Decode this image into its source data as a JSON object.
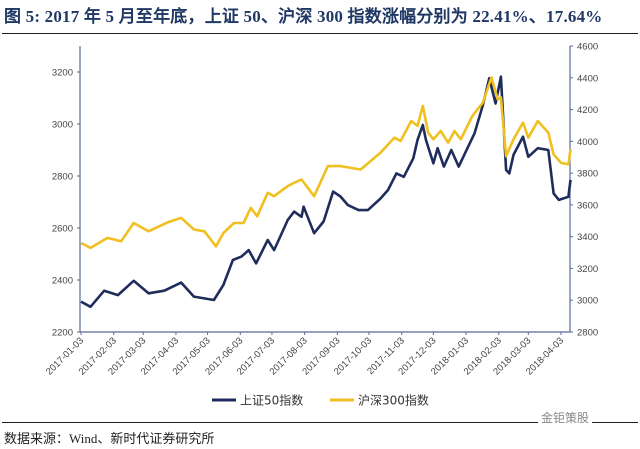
{
  "title": "图 5:   2017 年 5 月至年底，上证 50、沪深 300 指数涨幅分别为 22.41%、17.64%",
  "source": "数据来源：Wind、新时代证券研究所",
  "watermark": "金钜策股",
  "chart_data": {
    "type": "line",
    "title": "",
    "grid": false,
    "legend_position": "bottom",
    "x_ticks": [
      "2017-01-03",
      "2017-02-03",
      "2017-03-03",
      "2017-04-03",
      "2017-05-03",
      "2017-06-03",
      "2017-07-03",
      "2017-08-03",
      "2017-09-03",
      "2017-10-03",
      "2017-11-03",
      "2017-12-03",
      "2018-01-03",
      "2018-02-03",
      "2018-03-03",
      "2018-04-03"
    ],
    "y_left": {
      "lim": [
        2200,
        3300
      ],
      "ticks": [
        2200,
        2400,
        2600,
        2800,
        3000,
        3200
      ]
    },
    "y_right": {
      "lim": [
        2800,
        4600
      ],
      "ticks": [
        2800,
        3000,
        3200,
        3400,
        3600,
        3800,
        4000,
        4200,
        4400,
        4600
      ]
    },
    "series": [
      {
        "name": "上证50指数",
        "axis": "left",
        "color": "#1f2d5c",
        "x": [
          "2017-01-03",
          "2017-01-12",
          "2017-01-25",
          "2017-02-07",
          "2017-02-22",
          "2017-03-08",
          "2017-03-23",
          "2017-04-08",
          "2017-04-20",
          "2017-05-09",
          "2017-05-18",
          "2017-05-27",
          "2017-06-04",
          "2017-06-11",
          "2017-06-18",
          "2017-06-29",
          "2017-07-05",
          "2017-07-18",
          "2017-07-24",
          "2017-07-31",
          "2017-08-02",
          "2017-08-12",
          "2017-08-21",
          "2017-08-30",
          "2017-09-06",
          "2017-09-13",
          "2017-09-23",
          "2017-10-02",
          "2017-10-14",
          "2017-10-21",
          "2017-10-29",
          "2017-11-05",
          "2017-11-14",
          "2017-11-18",
          "2017-11-23",
          "2017-11-26",
          "2017-12-03",
          "2017-12-07",
          "2017-12-13",
          "2017-12-20",
          "2017-12-27",
          "2018-01-05",
          "2018-01-11",
          "2018-01-19",
          "2018-01-25",
          "2018-01-31",
          "2018-02-05",
          "2018-02-10",
          "2018-02-13",
          "2018-02-17",
          "2018-02-26",
          "2018-03-03",
          "2018-03-12",
          "2018-03-22",
          "2018-03-27",
          "2018-04-01",
          "2018-04-10",
          "2018-04-12"
        ],
        "values": [
          2317,
          2297,
          2359,
          2342,
          2397,
          2349,
          2359,
          2390,
          2336,
          2323,
          2381,
          2477,
          2490,
          2515,
          2464,
          2554,
          2515,
          2631,
          2663,
          2643,
          2682,
          2580,
          2625,
          2740,
          2721,
          2688,
          2669,
          2669,
          2714,
          2746,
          2810,
          2797,
          2868,
          2938,
          2996,
          2938,
          2849,
          2907,
          2836,
          2900,
          2836,
          2913,
          2964,
          3073,
          3176,
          3079,
          3182,
          2823,
          2810,
          2881,
          2951,
          2874,
          2907,
          2900,
          2733,
          2708,
          2720,
          2785
        ]
      },
      {
        "name": "沪深300指数",
        "axis": "right",
        "color": "#f0c020",
        "x": [
          "2017-01-03",
          "2017-01-12",
          "2017-01-28",
          "2017-02-10",
          "2017-02-22",
          "2017-03-08",
          "2017-03-26",
          "2017-04-08",
          "2017-04-20",
          "2017-04-30",
          "2017-05-11",
          "2017-05-18",
          "2017-05-28",
          "2017-06-06",
          "2017-06-13",
          "2017-06-19",
          "2017-06-29",
          "2017-07-05",
          "2017-07-18",
          "2017-07-24",
          "2017-07-31",
          "2017-08-12",
          "2017-08-25",
          "2017-09-06",
          "2017-09-25",
          "2017-10-14",
          "2017-10-27",
          "2017-11-02",
          "2017-11-12",
          "2017-11-18",
          "2017-11-23",
          "2017-11-28",
          "2017-12-03",
          "2017-12-10",
          "2017-12-17",
          "2017-12-23",
          "2017-12-29",
          "2018-01-09",
          "2018-01-19",
          "2018-01-27",
          "2018-02-02",
          "2018-02-05",
          "2018-02-10",
          "2018-02-17",
          "2018-02-26",
          "2018-03-03",
          "2018-03-12",
          "2018-03-22",
          "2018-03-27",
          "2018-04-03",
          "2018-04-10",
          "2018-04-12"
        ],
        "values": [
          3360,
          3329,
          3392,
          3371,
          3486,
          3434,
          3490,
          3518,
          3445,
          3434,
          3339,
          3423,
          3486,
          3486,
          3581,
          3528,
          3676,
          3655,
          3718,
          3739,
          3760,
          3655,
          3844,
          3844,
          3823,
          3929,
          4023,
          4002,
          4128,
          4097,
          4223,
          4055,
          4013,
          4065,
          3992,
          4065,
          4013,
          4160,
          4244,
          4402,
          4265,
          4276,
          3907,
          4013,
          4118,
          4023,
          4128,
          4055,
          3918,
          3865,
          3855,
          3949
        ]
      }
    ]
  }
}
